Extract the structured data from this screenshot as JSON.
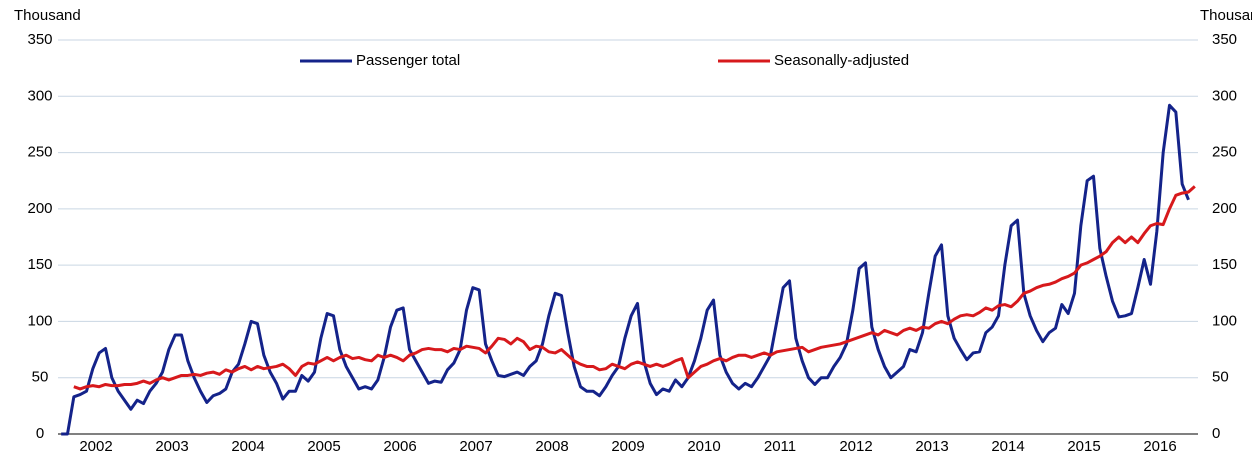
{
  "chart_data": {
    "type": "line",
    "y_label": "Thousand",
    "y2_label": "Thousand",
    "categories": [
      null,
      null,
      null,
      null,
      null,
      null,
      "2002",
      null,
      null,
      null,
      null,
      null,
      null,
      null,
      null,
      null,
      null,
      null,
      "2003",
      null,
      null,
      null,
      null,
      null,
      null,
      null,
      null,
      null,
      null,
      null,
      "2004",
      null,
      null,
      null,
      null,
      null,
      null,
      null,
      null,
      null,
      null,
      null,
      "2005",
      null,
      null,
      null,
      null,
      null,
      null,
      null,
      null,
      null,
      null,
      null,
      "2006",
      null,
      null,
      null,
      null,
      null,
      null,
      null,
      null,
      null,
      null,
      null,
      "2007",
      null,
      null,
      null,
      null,
      null,
      null,
      null,
      null,
      null,
      null,
      null,
      "2008",
      null,
      null,
      null,
      null,
      null,
      null,
      null,
      null,
      null,
      null,
      null,
      "2009",
      null,
      null,
      null,
      null,
      null,
      null,
      null,
      null,
      null,
      null,
      null,
      "2010",
      null,
      null,
      null,
      null,
      null,
      null,
      null,
      null,
      null,
      null,
      null,
      "2011",
      null,
      null,
      null,
      null,
      null,
      null,
      null,
      null,
      null,
      null,
      null,
      "2012",
      null,
      null,
      null,
      null,
      null,
      null,
      null,
      null,
      null,
      null,
      null,
      "2013",
      null,
      null,
      null,
      null,
      null,
      null,
      null,
      null,
      null,
      null,
      null,
      "2014",
      null,
      null,
      null,
      null,
      null,
      null,
      null,
      null,
      null,
      null,
      null,
      "2015",
      null,
      null,
      null,
      null,
      null,
      null,
      null,
      null,
      null,
      null,
      null,
      "2016",
      null,
      null,
      null,
      null,
      null
    ],
    "series": [
      {
        "name": "Passenger total",
        "color": "#14238a",
        "values": [
          0,
          0,
          33,
          35,
          38,
          58,
          72,
          76,
          50,
          38,
          30,
          22,
          30,
          27,
          38,
          45,
          55,
          75,
          88,
          88,
          65,
          50,
          38,
          28,
          34,
          36,
          40,
          55,
          62,
          80,
          100,
          98,
          70,
          55,
          45,
          31,
          38,
          38,
          52,
          47,
          55,
          85,
          107,
          105,
          75,
          60,
          50,
          40,
          42,
          40,
          48,
          68,
          95,
          110,
          112,
          75,
          65,
          55,
          45,
          47,
          46,
          57,
          63,
          75,
          110,
          130,
          128,
          80,
          65,
          52,
          51,
          53,
          55,
          52,
          60,
          65,
          80,
          105,
          125,
          123,
          90,
          60,
          42,
          38,
          38,
          34,
          42,
          52,
          60,
          85,
          105,
          116,
          65,
          45,
          35,
          40,
          38,
          48,
          42,
          50,
          65,
          85,
          110,
          119,
          70,
          55,
          45,
          40,
          45,
          42,
          50,
          60,
          70,
          100,
          130,
          136,
          85,
          65,
          50,
          44,
          50,
          50,
          60,
          68,
          80,
          110,
          147,
          152,
          95,
          75,
          60,
          50,
          55,
          60,
          75,
          73,
          90,
          125,
          158,
          168,
          105,
          85,
          75,
          66,
          72,
          73,
          90,
          95,
          105,
          150,
          185,
          190,
          125,
          105,
          92,
          82,
          90,
          94,
          115,
          107,
          125,
          185,
          225,
          229,
          165,
          140,
          118,
          104,
          105,
          107,
          130,
          155,
          133,
          180,
          250,
          292,
          286,
          222,
          208,
          null
        ]
      },
      {
        "name": "Seasonally-adjusted",
        "color": "#d7191c",
        "values": [
          null,
          null,
          42,
          40,
          42,
          43,
          42,
          44,
          43,
          43,
          44,
          44,
          45,
          47,
          45,
          48,
          50,
          48,
          50,
          52,
          52,
          53,
          52,
          54,
          55,
          53,
          57,
          55,
          58,
          60,
          57,
          60,
          58,
          59,
          60,
          62,
          58,
          52,
          60,
          63,
          62,
          65,
          68,
          65,
          68,
          70,
          67,
          68,
          66,
          65,
          70,
          68,
          70,
          68,
          65,
          70,
          72,
          75,
          76,
          75,
          75,
          73,
          76,
          75,
          78,
          77,
          76,
          72,
          78,
          85,
          84,
          80,
          85,
          82,
          75,
          78,
          77,
          73,
          72,
          75,
          70,
          65,
          62,
          60,
          60,
          57,
          58,
          62,
          60,
          58,
          62,
          64,
          62,
          60,
          62,
          60,
          62,
          65,
          67,
          50,
          55,
          60,
          62,
          65,
          67,
          65,
          68,
          70,
          70,
          68,
          70,
          72,
          70,
          73,
          74,
          75,
          76,
          77,
          73,
          75,
          77,
          78,
          79,
          80,
          82,
          84,
          86,
          88,
          90,
          88,
          92,
          90,
          88,
          92,
          94,
          92,
          95,
          94,
          98,
          100,
          98,
          102,
          105,
          106,
          105,
          108,
          112,
          110,
          114,
          115,
          113,
          118,
          125,
          127,
          130,
          132,
          133,
          135,
          138,
          140,
          143,
          150,
          152,
          155,
          158,
          162,
          170,
          175,
          170,
          175,
          170,
          178,
          185,
          187,
          186,
          200,
          212,
          214,
          215,
          220
        ]
      }
    ],
    "ylim": [
      0,
      350
    ],
    "yticks": [
      0,
      50,
      100,
      150,
      200,
      250,
      300,
      350
    ],
    "y2lim": [
      0,
      350
    ],
    "y2ticks": [
      0,
      50,
      100,
      150,
      200,
      250,
      300,
      350
    ],
    "grid": true,
    "legend": "top"
  }
}
